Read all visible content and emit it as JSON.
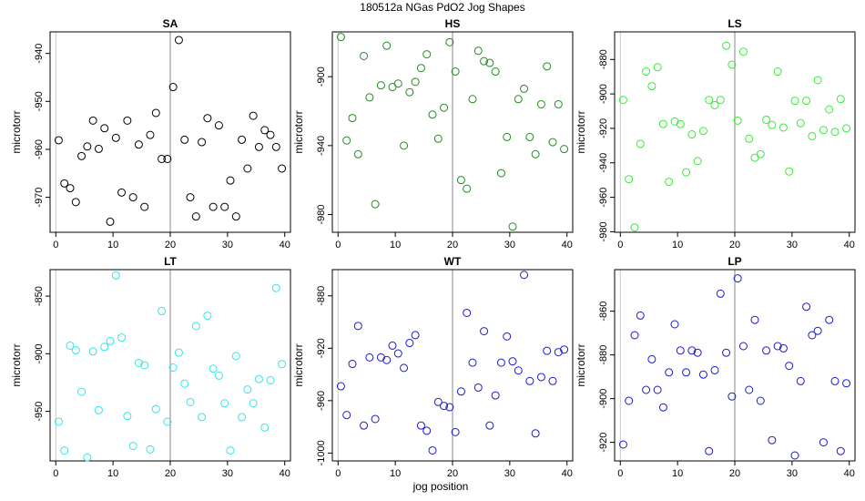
{
  "figure": {
    "title": "180512a    NGas PdO2 Jog Shapes",
    "xlabel": "jog position",
    "ylabel": "microtorr"
  },
  "chart_data": [
    {
      "type": "scatter",
      "title": "SA",
      "ylabel": "microtorr",
      "color": "#000000",
      "xlim": [
        -1,
        41
      ],
      "ylim": [
        -977.3,
        -935.5
      ],
      "xticks": [
        0,
        10,
        20,
        30,
        40
      ],
      "yticks": [
        -970,
        -960,
        -950,
        -940
      ],
      "vline": 20,
      "x": [
        0.5,
        1.5,
        2.5,
        3.5,
        4.5,
        5.5,
        6.5,
        7.5,
        8.5,
        9.5,
        10.5,
        11.5,
        12.5,
        13.5,
        14.5,
        15.5,
        16.5,
        17.5,
        18.5,
        19.5,
        20.5,
        21.5,
        22.5,
        23.5,
        24.5,
        25.5,
        26.5,
        27.5,
        28.5,
        29.5,
        30.5,
        31.5,
        32.5,
        33.5,
        34.5,
        35.5,
        36.5,
        37.5,
        38.5,
        39.5
      ],
      "y": [
        -958.1,
        -967.1,
        -968.1,
        -971.0,
        -961.4,
        -959.4,
        -954.0,
        -959.9,
        -955.6,
        -975.1,
        -957.6,
        -969.0,
        -954.0,
        -970.0,
        -959.0,
        -972.0,
        -957.0,
        -952.4,
        -962.0,
        -962.0,
        -947.0,
        -937.2,
        -958.0,
        -970.0,
        -974.0,
        -958.5,
        -953.5,
        -972.0,
        -955.0,
        -972.0,
        -966.5,
        -974.0,
        -958.0,
        -964.0,
        -953.0,
        -959.5,
        -956.0,
        -957.0,
        -959.5,
        -964.0
      ]
    },
    {
      "type": "scatter",
      "title": "HS",
      "ylabel": "microtorr",
      "color": "#238b22",
      "xlim": [
        -1,
        41
      ],
      "ylim": [
        -990.3,
        -874.0
      ],
      "xticks": [
        0,
        10,
        20,
        30,
        40
      ],
      "yticks": [
        -980,
        -940,
        -900
      ],
      "vline": 20,
      "x": [
        0.5,
        1.5,
        2.5,
        3.5,
        4.5,
        5.5,
        6.5,
        7.5,
        8.5,
        9.5,
        10.5,
        11.5,
        12.5,
        13.5,
        14.5,
        15.5,
        16.5,
        17.5,
        18.5,
        19.5,
        20.5,
        21.5,
        22.5,
        23.5,
        24.5,
        25.5,
        26.5,
        27.5,
        28.5,
        29.5,
        30.5,
        31.5,
        32.5,
        33.5,
        34.5,
        35.5,
        36.5,
        37.5,
        38.5,
        39.5
      ],
      "y": [
        -877.0,
        -937.0,
        -924.0,
        -945.0,
        -888.0,
        -912.0,
        -974.0,
        -905.0,
        -882.0,
        -906.0,
        -904.0,
        -940.0,
        -909.0,
        -903.0,
        -895.0,
        -887.0,
        -922.0,
        -936.0,
        -918.0,
        -880.0,
        -897.0,
        -960.0,
        -965.0,
        -913.0,
        -885.0,
        -891.0,
        -892.0,
        -897.0,
        -956.0,
        -935.0,
        -987.0,
        -913.0,
        -907.0,
        -935.0,
        -945.0,
        -916.0,
        -894.0,
        -938.0,
        -916.0,
        -942.0
      ]
    },
    {
      "type": "scatter",
      "title": "LS",
      "ylabel": "microtorr",
      "color": "#33ee33",
      "xlim": [
        -1,
        41
      ],
      "ylim": [
        -980.3,
        -864.0
      ],
      "xticks": [
        0,
        10,
        20,
        30,
        40
      ],
      "yticks": [
        -980,
        -960,
        -940,
        -920,
        -900,
        -880
      ],
      "vline": 20,
      "x": [
        0.5,
        1.5,
        2.5,
        3.5,
        4.5,
        5.5,
        6.5,
        7.5,
        8.5,
        9.5,
        10.5,
        11.5,
        12.5,
        13.5,
        14.5,
        15.5,
        16.5,
        17.5,
        18.5,
        19.5,
        20.5,
        21.5,
        22.5,
        23.5,
        24.5,
        25.5,
        26.5,
        27.5,
        28.5,
        29.5,
        30.5,
        31.5,
        32.5,
        33.5,
        34.5,
        35.5,
        36.5,
        37.5,
        38.5,
        39.5
      ],
      "y": [
        -903.5,
        -949.5,
        -977.5,
        -929.0,
        -887.0,
        -895.5,
        -884.5,
        -917.5,
        -951.0,
        -916.0,
        -917.5,
        -945.5,
        -923.5,
        -939.0,
        -921.5,
        -903.5,
        -906.5,
        -903.5,
        -872.0,
        -883.0,
        -915.5,
        -875.5,
        -926.0,
        -937.0,
        -935.0,
        -915.0,
        -918.0,
        -887.0,
        -919.5,
        -945.0,
        -904.0,
        -917.0,
        -904.0,
        -924.5,
        -892.0,
        -921.0,
        -909.0,
        -922.0,
        -903.0,
        -920.0
      ]
    },
    {
      "type": "scatter",
      "title": "LT",
      "ylabel": "microtorr",
      "color": "#33e5e5",
      "xlim": [
        -1,
        41
      ],
      "ylim": [
        -993.0,
        -827.0
      ],
      "xticks": [
        0,
        10,
        20,
        30,
        40
      ],
      "yticks": [
        -950,
        -900,
        -850
      ],
      "vline": 20,
      "x": [
        0.5,
        1.5,
        2.5,
        3.5,
        4.5,
        5.5,
        6.5,
        7.5,
        8.5,
        9.5,
        10.5,
        11.5,
        12.5,
        13.5,
        14.5,
        15.5,
        16.5,
        17.5,
        18.5,
        19.5,
        20.5,
        21.5,
        22.5,
        23.5,
        24.5,
        25.5,
        26.5,
        27.5,
        28.5,
        29.5,
        30.5,
        31.5,
        32.5,
        33.5,
        34.5,
        35.5,
        36.5,
        37.5,
        38.5,
        39.5
      ],
      "y": [
        -959.0,
        -984.0,
        -893.0,
        -897.0,
        -933.0,
        -990.0,
        -898.0,
        -949.0,
        -894.0,
        -889.0,
        -832.0,
        -886.0,
        -954.0,
        -980.0,
        -908.0,
        -910.0,
        -983.0,
        -948.0,
        -863.0,
        -959.0,
        -912.0,
        -899.0,
        -926.0,
        -942.0,
        -876.0,
        -955.0,
        -867.0,
        -913.0,
        -919.0,
        -943.0,
        -984.0,
        -902.0,
        -955.0,
        -931.0,
        -943.0,
        -922.0,
        -964.0,
        -923.0,
        -843.0,
        -909.0
      ]
    },
    {
      "type": "scatter",
      "title": "WT",
      "ylabel": "microtorr",
      "color": "#1a1acc",
      "xlim": [
        -1,
        41
      ],
      "ylim": [
        -1006.0,
        -860.0
      ],
      "xticks": [
        0,
        10,
        20,
        30,
        40
      ],
      "yticks": [
        -1000,
        -960,
        -920,
        -880
      ],
      "vline": 20,
      "x": [
        0.5,
        1.5,
        2.5,
        3.5,
        4.5,
        5.5,
        6.5,
        7.5,
        8.5,
        9.5,
        10.5,
        11.5,
        12.5,
        13.5,
        14.5,
        15.5,
        16.5,
        17.5,
        18.5,
        19.5,
        20.5,
        21.5,
        22.5,
        23.5,
        24.5,
        25.5,
        26.5,
        27.5,
        28.5,
        29.5,
        30.5,
        31.5,
        32.5,
        33.5,
        34.5,
        35.5,
        36.5,
        37.5,
        38.5,
        39.5
      ],
      "y": [
        -949.0,
        -971.0,
        -932.0,
        -903.0,
        -979.0,
        -927.0,
        -974.0,
        -927.0,
        -929.0,
        -918.0,
        -924.0,
        -935.0,
        -916.0,
        -910.0,
        -979.0,
        -983.0,
        -998.0,
        -961.0,
        -964.0,
        -965.0,
        -984.0,
        -953.0,
        -893.0,
        -931.0,
        -950.0,
        -907.0,
        -979.0,
        -956.0,
        -931.0,
        -911.0,
        -930.0,
        -937.0,
        -864.0,
        -945.0,
        -985.0,
        -942.0,
        -922.0,
        -945.0,
        -923.0,
        -921.0
      ]
    },
    {
      "type": "scatter",
      "title": "LP",
      "ylabel": "microtorr",
      "color": "#1a1acc",
      "xlim": [
        -1,
        41
      ],
      "ylim": [
        -928.5,
        -841.0
      ],
      "xticks": [
        0,
        10,
        20,
        30,
        40
      ],
      "yticks": [
        -920,
        -900,
        -880,
        -860
      ],
      "vline": 20,
      "x": [
        0.5,
        1.5,
        2.5,
        3.5,
        4.5,
        5.5,
        6.5,
        7.5,
        8.5,
        9.5,
        10.5,
        11.5,
        12.5,
        13.5,
        14.5,
        15.5,
        16.5,
        17.5,
        18.5,
        19.5,
        20.5,
        21.5,
        22.5,
        23.5,
        24.5,
        25.5,
        26.5,
        27.5,
        28.5,
        29.5,
        30.5,
        31.5,
        32.5,
        33.5,
        34.5,
        35.5,
        36.5,
        37.5,
        38.5,
        39.5
      ],
      "y": [
        -921.0,
        -901.0,
        -871.0,
        -862.0,
        -896.0,
        -882.0,
        -896.0,
        -904.0,
        -888.0,
        -866.0,
        -878.0,
        -888.0,
        -878.0,
        -879.0,
        -889.0,
        -924.0,
        -887.0,
        -852.0,
        -879.0,
        -899.0,
        -845.0,
        -876.0,
        -896.0,
        -864.0,
        -901.0,
        -878.0,
        -919.0,
        -876.0,
        -877.0,
        -885.0,
        -926.0,
        -892.0,
        -858.0,
        -871.0,
        -869.0,
        -920.0,
        -864.0,
        -892.0,
        -924.0,
        -893.0
      ]
    }
  ]
}
